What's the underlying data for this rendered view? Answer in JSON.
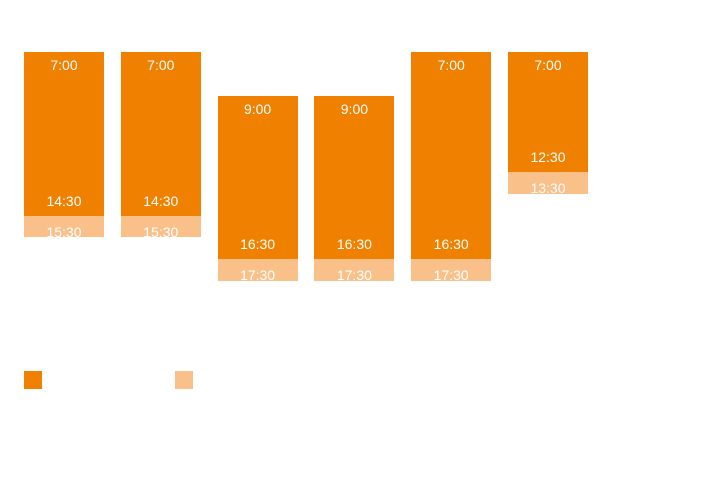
{
  "colors": {
    "main": "#F08000",
    "extension": "#F9C08A"
  },
  "chart_data": {
    "type": "bar",
    "subtype": "floating-range",
    "y_axis": {
      "unit": "hour-of-day",
      "range": [
        7,
        17.5
      ],
      "inverted": true
    },
    "series": [
      {
        "key": "main",
        "color": "#F08000"
      },
      {
        "key": "extension",
        "color": "#F9C08A"
      }
    ],
    "columns": [
      {
        "start": 7,
        "end": 14.5,
        "ext_end": 15.5,
        "start_label": "7:00",
        "end_label": "14:30",
        "ext_label": "15:30"
      },
      {
        "start": 7,
        "end": 14.5,
        "ext_end": 15.5,
        "start_label": "7:00",
        "end_label": "14:30",
        "ext_label": "15:30"
      },
      {
        "start": 9,
        "end": 16.5,
        "ext_end": 17.5,
        "start_label": "9:00",
        "end_label": "16:30",
        "ext_label": "17:30"
      },
      {
        "start": 9,
        "end": 16.5,
        "ext_end": 17.5,
        "start_label": "9:00",
        "end_label": "16:30",
        "ext_label": "17:30"
      },
      {
        "start": 7,
        "end": 16.5,
        "ext_end": 17.5,
        "start_label": "7:00",
        "end_label": "16:30",
        "ext_label": "17:30"
      },
      {
        "start": 7,
        "end": 12.5,
        "ext_end": 13.5,
        "start_label": "7:00",
        "end_label": "12:30",
        "ext_label": "13:30"
      }
    ],
    "legend": [
      {
        "series": "main",
        "label": ""
      },
      {
        "series": "extension",
        "label": ""
      }
    ],
    "grid": false
  }
}
